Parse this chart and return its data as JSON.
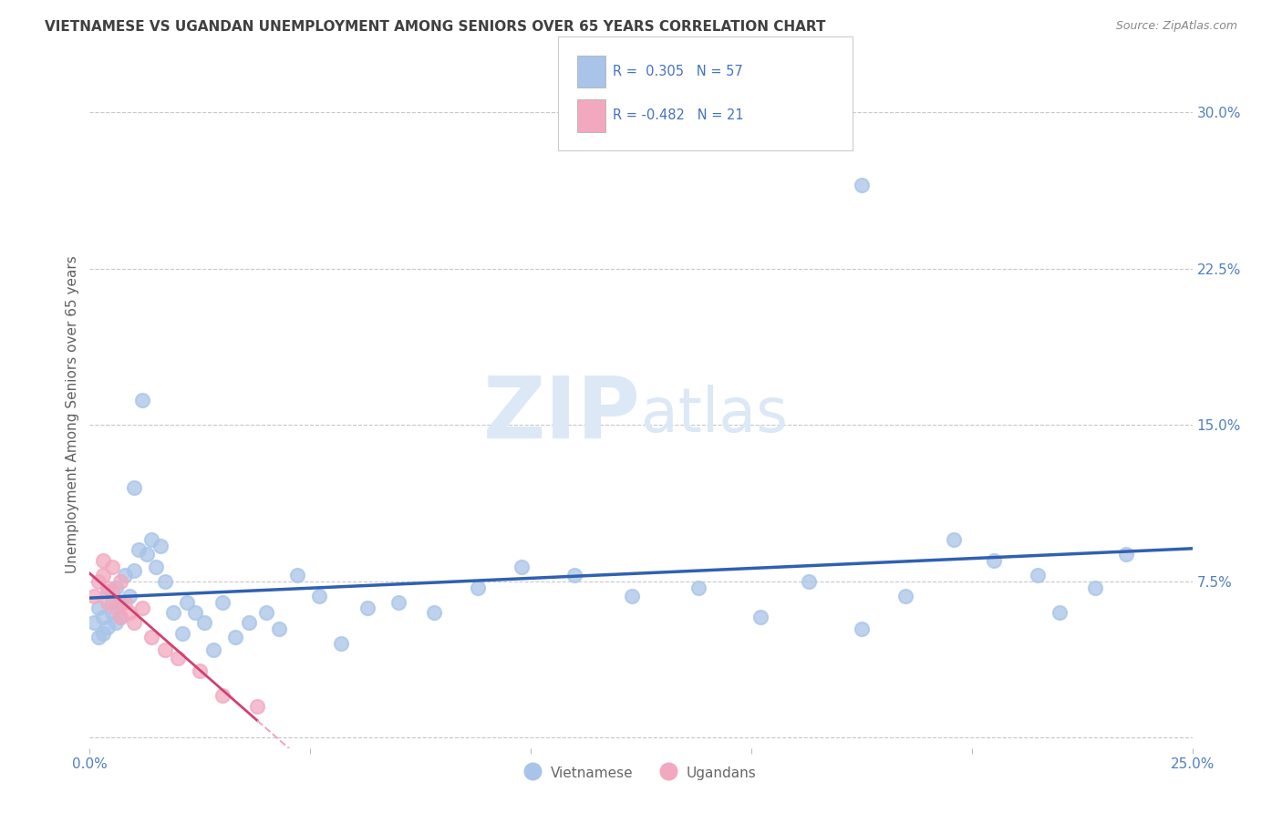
{
  "title": "VIETNAMESE VS UGANDAN UNEMPLOYMENT AMONG SENIORS OVER 65 YEARS CORRELATION CHART",
  "source": "Source: ZipAtlas.com",
  "ylabel": "Unemployment Among Seniors over 65 years",
  "x_min": 0.0,
  "x_max": 0.25,
  "y_min": -0.005,
  "y_max": 0.315,
  "x_ticks": [
    0.0,
    0.05,
    0.1,
    0.15,
    0.2,
    0.25
  ],
  "x_tick_labels": [
    "0.0%",
    "",
    "",
    "",
    "",
    "25.0%"
  ],
  "y_ticks_right": [
    0.0,
    0.075,
    0.15,
    0.225,
    0.3
  ],
  "y_tick_labels_right": [
    "",
    "7.5%",
    "15.0%",
    "22.5%",
    "30.0%"
  ],
  "vietnamese_color": "#a8c4e8",
  "ugandan_color": "#f2a8be",
  "trend_viet_color": "#3060b0",
  "trend_ug_solid_color": "#d04070",
  "trend_ug_dash_color": "#f0a8be",
  "background_color": "#ffffff",
  "grid_color": "#c8c8c8",
  "title_color": "#404040",
  "axis_color": "#5080c0",
  "ylabel_color": "#606060",
  "source_color": "#888888",
  "watermark_color": "#dce8f5",
  "legend_box_color": "#ffffff",
  "legend_border_color": "#cccccc",
  "legend_text_color": "#4472c4",
  "bottom_legend_color": "#666666",
  "viet_x": [
    0.001,
    0.002,
    0.002,
    0.003,
    0.003,
    0.004,
    0.004,
    0.005,
    0.005,
    0.006,
    0.006,
    0.007,
    0.007,
    0.008,
    0.009,
    0.01,
    0.01,
    0.011,
    0.012,
    0.013,
    0.014,
    0.015,
    0.016,
    0.017,
    0.019,
    0.021,
    0.022,
    0.024,
    0.026,
    0.028,
    0.03,
    0.033,
    0.036,
    0.04,
    0.043,
    0.047,
    0.052,
    0.057,
    0.063,
    0.07,
    0.078,
    0.088,
    0.098,
    0.11,
    0.123,
    0.138,
    0.152,
    0.163,
    0.175,
    0.185,
    0.196,
    0.205,
    0.215,
    0.22,
    0.228,
    0.235,
    0.175
  ],
  "viet_y": [
    0.055,
    0.048,
    0.062,
    0.05,
    0.058,
    0.053,
    0.07,
    0.06,
    0.065,
    0.055,
    0.072,
    0.065,
    0.058,
    0.078,
    0.068,
    0.08,
    0.12,
    0.09,
    0.162,
    0.088,
    0.095,
    0.082,
    0.092,
    0.075,
    0.06,
    0.05,
    0.065,
    0.06,
    0.055,
    0.042,
    0.065,
    0.048,
    0.055,
    0.06,
    0.052,
    0.078,
    0.068,
    0.045,
    0.062,
    0.065,
    0.06,
    0.072,
    0.082,
    0.078,
    0.068,
    0.072,
    0.058,
    0.075,
    0.052,
    0.068,
    0.095,
    0.085,
    0.078,
    0.06,
    0.072,
    0.088,
    0.265
  ],
  "ug_x": [
    0.001,
    0.002,
    0.003,
    0.003,
    0.004,
    0.004,
    0.005,
    0.005,
    0.006,
    0.007,
    0.007,
    0.008,
    0.009,
    0.01,
    0.012,
    0.014,
    0.017,
    0.02,
    0.025,
    0.03,
    0.038
  ],
  "ug_y": [
    0.068,
    0.075,
    0.078,
    0.085,
    0.072,
    0.065,
    0.082,
    0.07,
    0.062,
    0.058,
    0.075,
    0.065,
    0.06,
    0.055,
    0.062,
    0.048,
    0.042,
    0.038,
    0.032,
    0.02,
    0.015
  ]
}
